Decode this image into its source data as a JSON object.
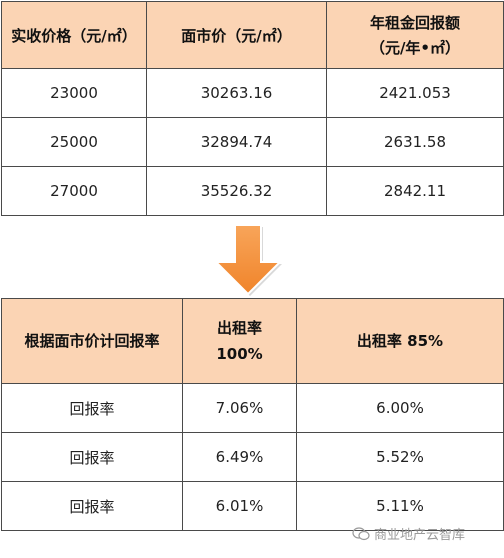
{
  "table1": {
    "headers": [
      "实收价格（元/㎡）",
      "面市价（元/㎡）",
      "年租金回报额",
      "（元/年•㎡）"
    ],
    "rows": [
      [
        "23000",
        "30263.16",
        "2421.053"
      ],
      [
        "25000",
        "32894.74",
        "2631.58"
      ],
      [
        "27000",
        "35526.32",
        "2842.11"
      ]
    ]
  },
  "table2": {
    "headers": [
      "根据面市价计回报率",
      "出租率",
      "100%",
      "出租率 85%"
    ],
    "rows": [
      [
        "回报率",
        "7.06%",
        "6.00%"
      ],
      [
        "回报率",
        "6.49%",
        "5.52%"
      ],
      [
        "回报率",
        "6.01%",
        "5.11%"
      ]
    ]
  },
  "arrow": {
    "color": "#f5923e",
    "icon": "down-arrow-icon"
  },
  "watermark": {
    "text": "商业地产云智库",
    "icon": "wechat-icon"
  }
}
